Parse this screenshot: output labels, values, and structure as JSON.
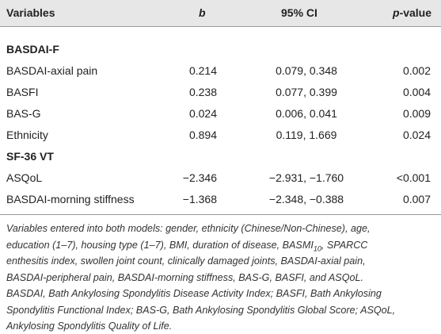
{
  "header": {
    "variables": "Variables",
    "b": "b",
    "ci": "95% CI",
    "p_italic": "p",
    "p_rest": "-value"
  },
  "sections": [
    {
      "title": "BASDAI-F",
      "rows": [
        [
          "BASDAI-axial pain",
          "0.214",
          "0.079, 0.348",
          "0.002"
        ],
        [
          "BASFI",
          "0.238",
          "0.077, 0.399",
          "0.004"
        ],
        [
          "BAS-G",
          "0.024",
          "0.006, 0.041",
          "0.009"
        ],
        [
          "Ethnicity",
          "0.894",
          "0.119, 1.669",
          "0.024"
        ]
      ]
    },
    {
      "title": "SF-36 VT",
      "rows": [
        [
          "ASQoL",
          "−2.346",
          "−2.931, −1.760",
          "<0.001"
        ],
        [
          "BASDAI-morning stiffness",
          "−1.368",
          "−2.348, −0.388",
          "0.007"
        ]
      ]
    }
  ],
  "footnote": {
    "lines": [
      "Variables entered into both models: gender, ethnicity (Chinese/Non-Chinese), age,",
      {
        "text": "education (1–7), housing type (1–7), BMI, duration of disease, BASMI",
        "subscript": "10",
        "after": ", SPARCC"
      },
      "enthesitis index, swollen joint count, clinically damaged joints, BASDAI-axial pain,",
      "BASDAI-peripheral pain, BASDAI-morning stiffness, BAS-G, BASFI, and ASQoL.",
      "BASDAI, Bath Ankylosing Spondylitis Disease Activity Index; BASFI, Bath Ankylosing",
      "Spondylitis Functional Index; BAS-G, Bath Ankylosing Spondylitis Global Score; ASQoL,",
      "Ankylosing Spondylitis Quality of Life."
    ]
  }
}
